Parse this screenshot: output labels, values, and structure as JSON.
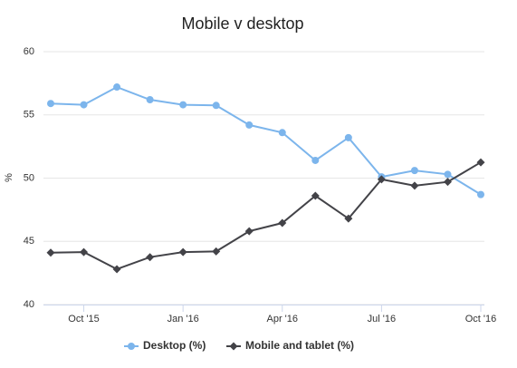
{
  "chart_data": {
    "type": "line",
    "title": "Mobile v desktop",
    "y_label": "%",
    "categories": [
      null,
      "Oct '15",
      null,
      null,
      "Jan '16",
      null,
      null,
      "Apr '16",
      null,
      null,
      "Jul '16",
      null,
      null,
      "Oct '16"
    ],
    "series": [
      {
        "name": "Desktop (%)",
        "color": "#7cb5ec",
        "marker": "circle",
        "values": [
          55.9,
          55.8,
          57.2,
          56.2,
          55.8,
          55.75,
          54.2,
          53.6,
          51.4,
          53.2,
          50.1,
          50.6,
          50.3,
          48.7
        ]
      },
      {
        "name": "Mobile and tablet (%)",
        "color": "#434348",
        "marker": "diamond",
        "values": [
          44.1,
          44.15,
          42.8,
          43.75,
          44.15,
          44.2,
          45.8,
          46.45,
          48.6,
          46.8,
          49.9,
          49.4,
          49.7,
          51.25
        ]
      }
    ],
    "ylim": [
      40,
      60
    ],
    "yticks": [
      40,
      45,
      50,
      55,
      60
    ],
    "grid": true,
    "legend": "bottom"
  }
}
